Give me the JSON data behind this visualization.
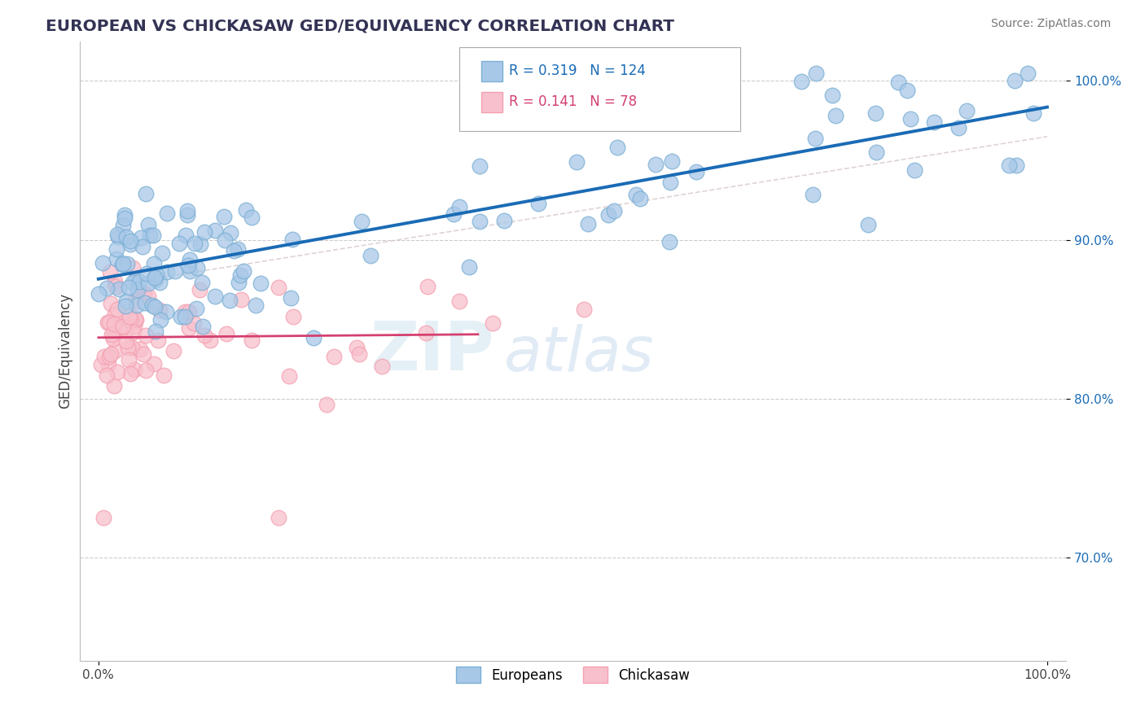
{
  "title": "EUROPEAN VS CHICKASAW GED/EQUIVALENCY CORRELATION CHART",
  "source": "Source: ZipAtlas.com",
  "ylabel": "GED/Equivalency",
  "ytick_values": [
    0.7,
    0.8,
    0.9,
    1.0
  ],
  "xlim": [
    -0.02,
    1.02
  ],
  "ylim": [
    0.635,
    1.025
  ],
  "blue_color": "#7BAFD4",
  "pink_color": "#F4A0B0",
  "blue_fill": "#A8C8E8",
  "pink_fill": "#F8C0CC",
  "blue_line_color": "#1A6BB5",
  "pink_line_color": "#D44070",
  "ref_line_color": "#CCBBBB",
  "legend_blue_R": "0.319",
  "legend_blue_N": "124",
  "legend_pink_R": "0.141",
  "legend_pink_N": "78",
  "watermark_zip": "ZIP",
  "watermark_atlas": "atlas",
  "watermark_color_zip": "#D5E5F0",
  "watermark_color_atlas": "#C0D8E8"
}
